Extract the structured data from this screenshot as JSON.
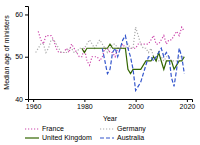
{
  "chart_data": {
    "type": "line",
    "title": "",
    "xlabel": "Year",
    "ylabel": "Median age of ministers",
    "xlim": [
      1958,
      2022
    ],
    "ylim": [
      40,
      62
    ],
    "xticks": [
      1960,
      1980,
      2000,
      2020
    ],
    "yticks": [
      40,
      50,
      60
    ],
    "legend": "bottom",
    "series": [
      {
        "name": "France",
        "color": "#cc44aa",
        "line_style": "dotted",
        "x": [
          1962,
          1963,
          1964,
          1965,
          1966,
          1967,
          1968,
          1969,
          1970,
          1971,
          1972,
          1973,
          1974,
          1975,
          1976,
          1977,
          1978,
          1979,
          1980,
          1981,
          1982,
          1983,
          1984,
          1985,
          1986,
          1987,
          1988,
          1989,
          1990,
          1991,
          1992,
          1993,
          1994,
          1995,
          1996,
          1997,
          1998,
          1999,
          2000,
          2001,
          2002,
          2003,
          2004,
          2005,
          2006,
          2007,
          2008,
          2009,
          2010,
          2011,
          2012,
          2013,
          2014,
          2015,
          2016,
          2017,
          2018,
          2019
        ],
        "values": [
          56,
          54,
          53,
          55,
          55,
          55,
          54,
          52,
          51,
          51,
          51,
          52,
          51,
          53,
          52,
          51,
          50,
          50,
          52,
          49,
          48,
          50,
          50,
          50,
          49,
          50,
          52,
          52,
          51,
          51,
          50,
          52,
          52,
          53,
          52,
          52,
          52,
          52,
          52,
          53,
          53,
          53,
          53,
          53,
          54,
          55,
          53,
          53,
          54,
          55,
          53,
          54,
          54,
          55,
          56,
          55,
          57,
          56
        ]
      },
      {
        "name": "Germany",
        "color": "#aaaaaa",
        "line_style": "dotted",
        "x": [
          1961,
          1962,
          1963,
          1964,
          1965,
          1966,
          1967,
          1968,
          1969,
          1970,
          1971,
          1972,
          1973,
          1974,
          1975,
          1976,
          1977,
          1978,
          1979,
          1980,
          1981,
          1982,
          1983,
          1984,
          1985,
          1986,
          1987,
          1988,
          1989,
          1990,
          1991,
          1992,
          1993,
          1994,
          1995,
          1996,
          1997,
          1998,
          1999,
          2000,
          2001,
          2002,
          2003,
          2004,
          2005,
          2006,
          2007,
          2008,
          2009,
          2010,
          2011,
          2012,
          2013,
          2014,
          2015,
          2016,
          2017,
          2018,
          2019
        ],
        "values": [
          51,
          52,
          53,
          53,
          51,
          52,
          54,
          54,
          53,
          52,
          51,
          51,
          51,
          52,
          52,
          51,
          51,
          52,
          52,
          52,
          53,
          54,
          53,
          52,
          53,
          54,
          53,
          52,
          51,
          52,
          53,
          53,
          52,
          52,
          52,
          52,
          53,
          52,
          52,
          57,
          55,
          53,
          52,
          52,
          51,
          52,
          50,
          49,
          49,
          50,
          49,
          50,
          50,
          49,
          49,
          49,
          50,
          50,
          50
        ]
      },
      {
        "name": "United Kingdom",
        "color": "#336600",
        "line_style": "solid",
        "x": [
          1979,
          1980,
          1981,
          1982,
          1983,
          1984,
          1985,
          1986,
          1987,
          1988,
          1989,
          1990,
          1991,
          1992,
          1993,
          1994,
          1995,
          1996,
          1997,
          1998,
          1999,
          2000,
          2001,
          2002,
          2003,
          2004,
          2005,
          2006,
          2007,
          2008,
          2009,
          2010,
          2011,
          2012,
          2013,
          2014,
          2015,
          2016,
          2017,
          2018,
          2019
        ],
        "values": [
          52,
          51,
          52,
          52,
          52,
          52,
          52,
          52,
          52,
          52,
          52,
          53,
          52,
          52,
          52,
          52,
          52,
          52,
          47,
          46,
          47,
          47,
          47,
          47,
          48,
          49,
          49,
          49,
          50,
          49,
          51,
          49,
          47,
          49,
          49,
          49,
          47,
          48,
          49,
          49,
          50
        ]
      },
      {
        "name": "Australia",
        "color": "#3355cc",
        "line_style": "dashed",
        "x": [
          1987,
          1988,
          1989,
          1990,
          1991,
          1992,
          1993,
          1994,
          1995,
          1996,
          1997,
          1998,
          1999,
          2000,
          2001,
          2002,
          2003,
          2004,
          2005,
          2006,
          2007,
          2008,
          2009,
          2010,
          2011,
          2012,
          2013,
          2014,
          2015,
          2016,
          2017,
          2018,
          2019
        ],
        "values": [
          52,
          49,
          46,
          47,
          51,
          52,
          50,
          52,
          54,
          55,
          52,
          50,
          47,
          42,
          43,
          44,
          46,
          48,
          50,
          50,
          49,
          50,
          51,
          52,
          50,
          51,
          50,
          45,
          43,
          47,
          52,
          50,
          46
        ]
      }
    ]
  }
}
